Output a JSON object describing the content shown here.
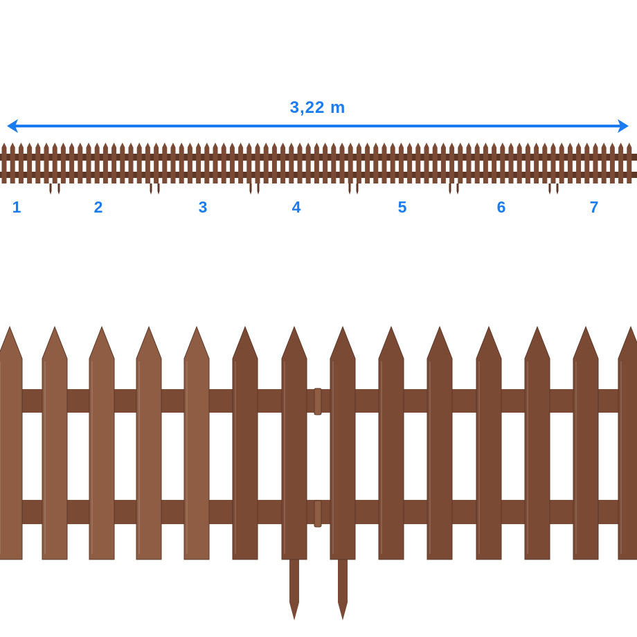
{
  "dimension": {
    "label": "3,22 m"
  },
  "sections": [
    "1",
    "2",
    "3",
    "4",
    "5",
    "6",
    "7"
  ],
  "colors": {
    "accent": "#1a7cf0",
    "fence": "#7a4a35",
    "fence_light": "#8f5c44",
    "fence_dark": "#5e3726"
  }
}
